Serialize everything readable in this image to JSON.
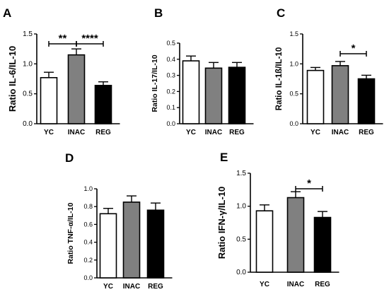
{
  "colors": {
    "YC": "#ffffff",
    "INAC": "#808080",
    "REG": "#000000",
    "stroke": "#000000"
  },
  "chart_data": [
    {
      "type": "bar",
      "panel": "A",
      "ylabel": "Ratio IL-6/IL-10",
      "ylim": [
        0,
        1.5
      ],
      "yticks": [
        "0.0",
        "0.5",
        "1.0",
        "1.5"
      ],
      "categories": [
        "YC",
        "INAC",
        "REG"
      ],
      "values": [
        0.77,
        1.15,
        0.64
      ],
      "errors": [
        0.09,
        0.1,
        0.06
      ],
      "significance": [
        {
          "from": 0,
          "to": 1,
          "label": "**"
        },
        {
          "from": 1,
          "to": 2,
          "label": "****"
        }
      ]
    },
    {
      "type": "bar",
      "panel": "B",
      "ylabel": "Ratio IL-17/IL-10",
      "ylim": [
        0,
        0.5
      ],
      "yticks": [
        "0.0",
        "0.1",
        "0.2",
        "0.3",
        "0.4",
        "0.5"
      ],
      "categories": [
        "YC",
        "INAC",
        "REG"
      ],
      "values": [
        0.39,
        0.345,
        0.35
      ],
      "errors": [
        0.03,
        0.035,
        0.03
      ],
      "significance": []
    },
    {
      "type": "bar",
      "panel": "C",
      "ylabel": "Ratio IL-1ß/IL-10",
      "ylim": [
        0,
        1.5
      ],
      "yticks": [
        "0.0",
        "0.5",
        "1.0",
        "1.5"
      ],
      "categories": [
        "YC",
        "INAC",
        "REG"
      ],
      "values": [
        0.89,
        0.97,
        0.75
      ],
      "errors": [
        0.05,
        0.07,
        0.06
      ],
      "significance": [
        {
          "from": 1,
          "to": 2,
          "label": "*"
        }
      ]
    },
    {
      "type": "bar",
      "panel": "D",
      "ylabel": "Ratio TNF-α/IL-10",
      "ylim": [
        0,
        1.0
      ],
      "yticks": [
        "0.0",
        "0.2",
        "0.4",
        "0.6",
        "0.8",
        "1.0"
      ],
      "categories": [
        "YC",
        "INAC",
        "REG"
      ],
      "values": [
        0.72,
        0.85,
        0.76
      ],
      "errors": [
        0.06,
        0.07,
        0.08
      ],
      "significance": []
    },
    {
      "type": "bar",
      "panel": "E",
      "ylabel": "Ratio IFN-γ/IL-10",
      "ylim": [
        0,
        1.5
      ],
      "yticks": [
        "0.0",
        "0.5",
        "1.0",
        "1.5"
      ],
      "categories": [
        "YC",
        "INAC",
        "REG"
      ],
      "values": [
        0.93,
        1.13,
        0.83
      ],
      "errors": [
        0.09,
        0.09,
        0.09
      ],
      "significance": [
        {
          "from": 1,
          "to": 2,
          "label": "*"
        }
      ]
    }
  ]
}
